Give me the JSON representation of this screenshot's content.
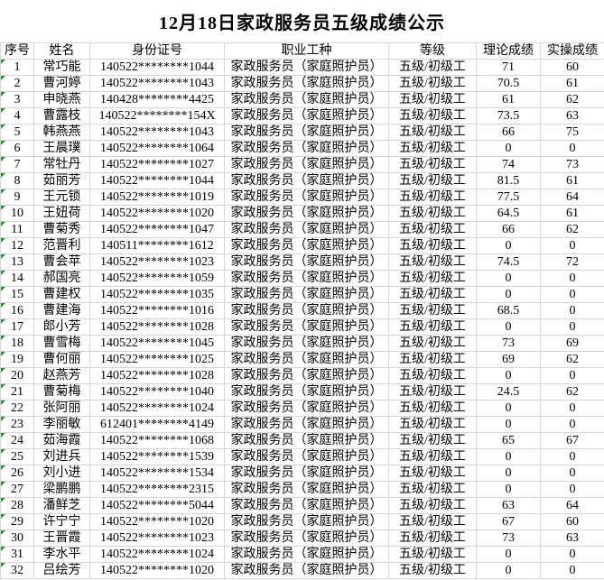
{
  "title": "12月18日家政服务员五级成绩公示",
  "colors": {
    "grid": "#d6d6d6",
    "error_indicator_green": "#2e8b3c",
    "text": "#000000",
    "background": "#ffffff"
  },
  "table": {
    "headers": [
      "序号",
      "姓名",
      "身份证号",
      "职业工种",
      "等级",
      "理论成绩",
      "实操成绩"
    ],
    "rows": [
      [
        "1",
        "常巧能",
        "140522********1044",
        "家政服务员（家庭照护员）",
        "五级/初级工",
        "71",
        "60"
      ],
      [
        "2",
        "曹河婷",
        "140522********1043",
        "家政服务员（家庭照护员）",
        "五级/初级工",
        "70.5",
        "61"
      ],
      [
        "3",
        "申晓燕",
        "140428********4425",
        "家政服务员（家庭照护员）",
        "五级/初级工",
        "61",
        "62"
      ],
      [
        "4",
        "曹露枝",
        "140522********154X",
        "家政服务员（家庭照护员）",
        "五级/初级工",
        "73.5",
        "63"
      ],
      [
        "5",
        "韩燕燕",
        "140522********1043",
        "家政服务员（家庭照护员）",
        "五级/初级工",
        "66",
        "75"
      ],
      [
        "6",
        "王晨璞",
        "140522********1064",
        "家政服务员（家庭照护员）",
        "五级/初级工",
        "0",
        "0"
      ],
      [
        "7",
        "常牡丹",
        "140522********1027",
        "家政服务员（家庭照护员）",
        "五级/初级工",
        "74",
        "73"
      ],
      [
        "8",
        "茹丽芳",
        "140522********1044",
        "家政服务员（家庭照护员）",
        "五级/初级工",
        "81.5",
        "61"
      ],
      [
        "9",
        "王元锁",
        "140522********1019",
        "家政服务员（家庭照护员）",
        "五级/初级工",
        "77.5",
        "64"
      ],
      [
        "10",
        "王妞荷",
        "140522********1020",
        "家政服务员（家庭照护员）",
        "五级/初级工",
        "64.5",
        "61"
      ],
      [
        "11",
        "曹菊秀",
        "140522********1047",
        "家政服务员（家庭照护员）",
        "五级/初级工",
        "66",
        "62"
      ],
      [
        "12",
        "范晋利",
        "140511********1612",
        "家政服务员（家庭照护员）",
        "五级/初级工",
        "0",
        "0"
      ],
      [
        "13",
        "曹会苹",
        "140522********1023",
        "家政服务员（家庭照护员）",
        "五级/初级工",
        "74.5",
        "72"
      ],
      [
        "14",
        "郝国亮",
        "140522********1059",
        "家政服务员（家庭照护员）",
        "五级/初级工",
        "0",
        "0"
      ],
      [
        "15",
        "曹建权",
        "140522********1035",
        "家政服务员（家庭照护员）",
        "五级/初级工",
        "0",
        "0"
      ],
      [
        "16",
        "曹建海",
        "140522********1016",
        "家政服务员（家庭照护员）",
        "五级/初级工",
        "68.5",
        "0"
      ],
      [
        "17",
        "郎小芳",
        "140522********1028",
        "家政服务员（家庭照护员）",
        "五级/初级工",
        "0",
        "0"
      ],
      [
        "18",
        "曹雪梅",
        "140522********1045",
        "家政服务员（家庭照护员）",
        "五级/初级工",
        "73",
        "69"
      ],
      [
        "19",
        "曹何丽",
        "140522********1025",
        "家政服务员（家庭照护员）",
        "五级/初级工",
        "69",
        "62"
      ],
      [
        "20",
        "赵燕芳",
        "140522********1028",
        "家政服务员（家庭照护员）",
        "五级/初级工",
        "0",
        "0"
      ],
      [
        "21",
        "曹菊梅",
        "140522********1040",
        "家政服务员（家庭照护员）",
        "五级/初级工",
        "24.5",
        "62"
      ],
      [
        "22",
        "张阿丽",
        "140522********1024",
        "家政服务员（家庭照护员）",
        "五级/初级工",
        "0",
        "0"
      ],
      [
        "23",
        "李丽敏",
        "612401********4149",
        "家政服务员（家庭照护员）",
        "五级/初级工",
        "0",
        "0"
      ],
      [
        "24",
        "茹海霞",
        "140522********1068",
        "家政服务员（家庭照护员）",
        "五级/初级工",
        "65",
        "67"
      ],
      [
        "25",
        "刘进兵",
        "140522********1539",
        "家政服务员（家庭照护员）",
        "五级/初级工",
        "0",
        "0"
      ],
      [
        "26",
        "刘小进",
        "140522********1534",
        "家政服务员（家庭照护员）",
        "五级/初级工",
        "0",
        "0"
      ],
      [
        "27",
        "梁鹏鹏",
        "140522********2315",
        "家政服务员（家庭照护员）",
        "五级/初级工",
        "0",
        "0"
      ],
      [
        "28",
        "潘鲜芝",
        "140522********5044",
        "家政服务员（家庭照护员）",
        "五级/初级工",
        "63",
        "64"
      ],
      [
        "29",
        "许宁宁",
        "140522********1020",
        "家政服务员（家庭照护员）",
        "五级/初级工",
        "67",
        "60"
      ],
      [
        "30",
        "王晋霞",
        "140522********1023",
        "家政服务员（家庭照护员）",
        "五级/初级工",
        "73",
        "63"
      ],
      [
        "31",
        "李水平",
        "140522********1024",
        "家政服务员（家庭照护员）",
        "五级/初级工",
        "0",
        "0"
      ],
      [
        "32",
        "吕绘芳",
        "140522********1020",
        "家政服务员（家庭照护员）",
        "五级/初级工",
        "0",
        "0"
      ]
    ]
  }
}
